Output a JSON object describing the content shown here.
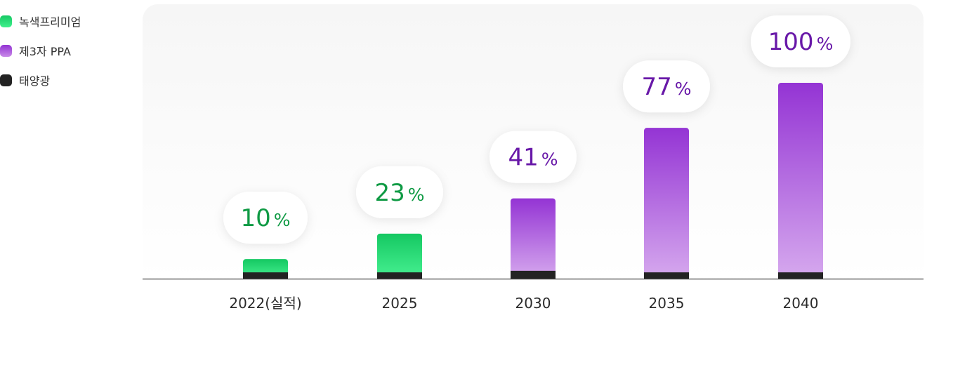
{
  "legend": [
    {
      "label": "녹색프리미엄",
      "color": "green",
      "icon": "green-square"
    },
    {
      "label": "제3자 PPA",
      "color": "purple",
      "icon": "purple-square"
    },
    {
      "label": "태양광",
      "color": "dark",
      "icon": "dark-square"
    }
  ],
  "colors": {
    "green_top": "#15c862",
    "green_bottom": "#47f192",
    "purple_top": "#9434d4",
    "purple_bottom": "#d6a9ee",
    "dark": "#232323",
    "green_label": "#0f9a44",
    "purple_label": "#6818a8"
  },
  "chart_data": {
    "type": "bar",
    "title": "",
    "xlabel": "",
    "ylabel": "",
    "ylim": [
      0,
      100
    ],
    "grid": false,
    "legend_position": "top-left",
    "categories": [
      "2022(실적)",
      "2025",
      "2030",
      "2035",
      "2040"
    ],
    "labels": [
      "10",
      "23",
      "41",
      "77",
      "100"
    ],
    "label_unit": "%",
    "total_bar_values": [
      10,
      23,
      41,
      77,
      100
    ],
    "series": [
      {
        "name": "녹색프리미엄",
        "values": [
          8,
          20,
          0,
          0,
          0
        ]
      },
      {
        "name": "제3자 PPA",
        "values": [
          0,
          0,
          37,
          74,
          97
        ]
      },
      {
        "name": "태양광",
        "values": [
          2,
          3,
          4,
          3,
          3
        ]
      }
    ],
    "bar_color_mode": [
      "green",
      "green",
      "purple",
      "purple",
      "purple"
    ]
  }
}
